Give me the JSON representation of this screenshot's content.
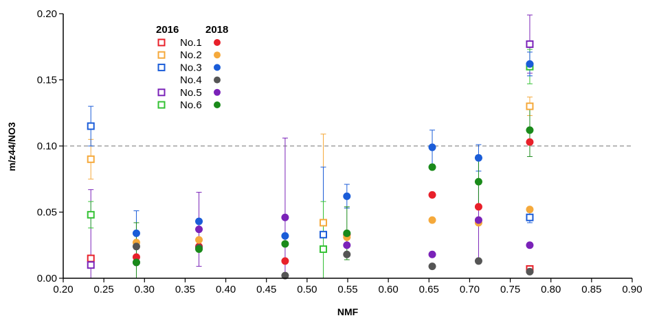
{
  "chart_data": {
    "type": "scatter",
    "xlabel": "NMF",
    "ylabel": "m/z44/NO3",
    "xlim": [
      0.2,
      0.9
    ],
    "ylim": [
      0.0,
      0.2
    ],
    "x_ticks": [
      "0.20",
      "0.25",
      "0.30",
      "0.35",
      "0.40",
      "0.45",
      "0.50",
      "0.55",
      "0.60",
      "0.65",
      "0.70",
      "0.75",
      "0.80",
      "0.85",
      "0.90"
    ],
    "y_ticks": [
      "0.00",
      "0.05",
      "0.10",
      "0.15",
      "0.20"
    ],
    "reference_line": {
      "y": 0.1,
      "style": "dashed",
      "color": "#a0a0a0"
    },
    "legend": {
      "placement": "top-left",
      "header_2016": "2016",
      "header_2018": "2018",
      "entries": [
        "No.1",
        "No.2",
        "No.3",
        "No.4",
        "No.5",
        "No.6"
      ]
    },
    "series": [
      {
        "name": "No.1",
        "year": "2016",
        "marker": "open-square",
        "color": "#e8202a",
        "points": [
          {
            "x": 0.234,
            "y": 0.015
          },
          {
            "x": 0.774,
            "y": 0.007
          }
        ]
      },
      {
        "name": "No.2",
        "year": "2016",
        "marker": "open-square",
        "color": "#f5a93b",
        "points": [
          {
            "x": 0.234,
            "y": 0.09,
            "err": 0.015
          },
          {
            "x": 0.52,
            "y": 0.042,
            "err": 0.067
          },
          {
            "x": 0.774,
            "y": 0.13,
            "err": 0.007
          }
        ]
      },
      {
        "name": "No.3",
        "year": "2016",
        "marker": "open-square",
        "color": "#1a5cd8",
        "points": [
          {
            "x": 0.234,
            "y": 0.115,
            "err": 0.015
          },
          {
            "x": 0.52,
            "y": 0.033,
            "err": 0.051
          },
          {
            "x": 0.774,
            "y": 0.046,
            "err": 0.004
          }
        ]
      },
      {
        "name": "No.5",
        "year": "2016",
        "marker": "open-square",
        "color": "#7a22b8",
        "points": [
          {
            "x": 0.234,
            "y": 0.01,
            "err": 0.057
          },
          {
            "x": 0.774,
            "y": 0.177,
            "err": 0.022
          }
        ]
      },
      {
        "name": "No.6",
        "year": "2016",
        "marker": "open-square",
        "color": "#33c233",
        "points": [
          {
            "x": 0.234,
            "y": 0.048,
            "err": 0.01
          },
          {
            "x": 0.52,
            "y": 0.022,
            "err": 0.036
          },
          {
            "x": 0.774,
            "y": 0.16,
            "err": 0.013
          }
        ]
      },
      {
        "name": "No.1",
        "year": "2018",
        "marker": "filled-circle",
        "color": "#e8202a",
        "points": [
          {
            "x": 0.29,
            "y": 0.016
          },
          {
            "x": 0.367,
            "y": 0.024
          },
          {
            "x": 0.473,
            "y": 0.013
          },
          {
            "x": 0.549,
            "y": 0.033
          },
          {
            "x": 0.654,
            "y": 0.063
          },
          {
            "x": 0.711,
            "y": 0.054
          },
          {
            "x": 0.774,
            "y": 0.103
          }
        ]
      },
      {
        "name": "No.2",
        "year": "2018",
        "marker": "filled-circle",
        "color": "#f5a93b",
        "points": [
          {
            "x": 0.29,
            "y": 0.027
          },
          {
            "x": 0.367,
            "y": 0.029
          },
          {
            "x": 0.549,
            "y": 0.031
          },
          {
            "x": 0.654,
            "y": 0.044
          },
          {
            "x": 0.711,
            "y": 0.042
          },
          {
            "x": 0.774,
            "y": 0.052
          }
        ]
      },
      {
        "name": "No.3",
        "year": "2018",
        "marker": "filled-circle",
        "color": "#1a5cd8",
        "points": [
          {
            "x": 0.29,
            "y": 0.034,
            "err": 0.017
          },
          {
            "x": 0.367,
            "y": 0.043
          },
          {
            "x": 0.473,
            "y": 0.032
          },
          {
            "x": 0.549,
            "y": 0.062,
            "err": 0.009
          },
          {
            "x": 0.654,
            "y": 0.099,
            "err": 0.013
          },
          {
            "x": 0.711,
            "y": 0.091,
            "err": 0.01
          },
          {
            "x": 0.774,
            "y": 0.162,
            "err": 0.009
          }
        ]
      },
      {
        "name": "No.4",
        "year": "2018",
        "marker": "filled-circle",
        "color": "#555555",
        "points": [
          {
            "x": 0.29,
            "y": 0.024
          },
          {
            "x": 0.367,
            "y": 0.023
          },
          {
            "x": 0.473,
            "y": 0.002
          },
          {
            "x": 0.549,
            "y": 0.018
          },
          {
            "x": 0.654,
            "y": 0.009
          },
          {
            "x": 0.711,
            "y": 0.013
          },
          {
            "x": 0.774,
            "y": 0.005
          }
        ]
      },
      {
        "name": "No.5",
        "year": "2018",
        "marker": "filled-circle",
        "color": "#7a22b8",
        "points": [
          {
            "x": 0.29,
            "y": 0.012
          },
          {
            "x": 0.367,
            "y": 0.037,
            "err": 0.028
          },
          {
            "x": 0.473,
            "y": 0.046,
            "err": 0.06
          },
          {
            "x": 0.549,
            "y": 0.025
          },
          {
            "x": 0.654,
            "y": 0.018
          },
          {
            "x": 0.711,
            "y": 0.044,
            "err": 0.03
          },
          {
            "x": 0.774,
            "y": 0.025
          }
        ]
      },
      {
        "name": "No.6",
        "year": "2018",
        "marker": "filled-circle",
        "color": "#1a8a1a",
        "points": [
          {
            "x": 0.29,
            "y": 0.012,
            "err": 0.03
          },
          {
            "x": 0.367,
            "y": 0.022
          },
          {
            "x": 0.473,
            "y": 0.026
          },
          {
            "x": 0.549,
            "y": 0.034,
            "err": 0.02
          },
          {
            "x": 0.654,
            "y": 0.084
          },
          {
            "x": 0.711,
            "y": 0.073,
            "err": 0.02
          },
          {
            "x": 0.774,
            "y": 0.112,
            "err": 0.02
          }
        ]
      }
    ]
  }
}
